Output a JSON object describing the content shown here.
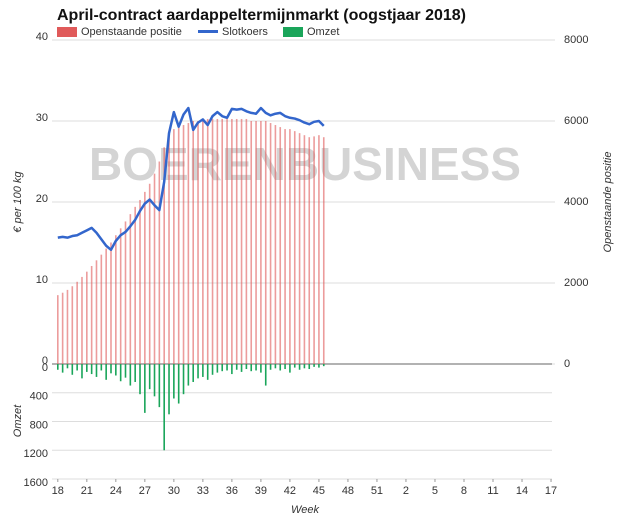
{
  "chart_data": {
    "type": "combo",
    "title": "April-contract aardappeltermijnmarkt (oogstjaar 2018)",
    "watermark": "BOERENBUSINESS",
    "x_label": "Week",
    "y_label": "€ per 100 kg",
    "y2_label": "Openstaande positie",
    "y3_label": "Omzet",
    "x": [
      18,
      18.5,
      19,
      19.5,
      20,
      20.5,
      21,
      21.5,
      22,
      22.5,
      23,
      23.5,
      24,
      24.5,
      25,
      25.5,
      26,
      26.5,
      27,
      27.5,
      28,
      28.5,
      29,
      29.5,
      30,
      30.5,
      31,
      31.5,
      32,
      32.5,
      33,
      33.5,
      34,
      34.5,
      35,
      35.5,
      36,
      36.5,
      37,
      37.5,
      38,
      38.5,
      39,
      39.5,
      40,
      40.5,
      41,
      41.5,
      42,
      42.5,
      43,
      43.5,
      44,
      44.5,
      45,
      45.5
    ],
    "xlim": [
      17.4,
      69.1
    ],
    "xticks": [
      18,
      21,
      24,
      27,
      30,
      33,
      36,
      39,
      42,
      45,
      48,
      51,
      {
        "value": 54,
        "label": "2"
      },
      {
        "value": 57,
        "label": "5"
      },
      {
        "value": 60,
        "label": "8"
      },
      {
        "value": 63,
        "label": "11"
      },
      {
        "value": 66,
        "label": "14"
      },
      {
        "value": 69,
        "label": "17"
      }
    ],
    "ylim": [
      0,
      40
    ],
    "yticks": [
      0,
      10,
      20,
      30,
      40
    ],
    "y2lim": [
      0,
      8000
    ],
    "y2ticks": [
      0,
      2000,
      4000,
      6000,
      8000
    ],
    "y3lim": [
      0,
      1600
    ],
    "y3ticks": [
      0,
      400,
      800,
      1200,
      1600
    ],
    "grid": true,
    "series": [
      {
        "name": "Openstaande positie",
        "color": "#e05a5a",
        "type": "bar",
        "axis": "y2",
        "values": [
          1700,
          1760,
          1830,
          1920,
          2030,
          2150,
          2280,
          2420,
          2560,
          2700,
          2850,
          3000,
          3180,
          3350,
          3520,
          3700,
          3880,
          4050,
          4250,
          4450,
          4700,
          5000,
          5350,
          5650,
          5800,
          5850,
          5900,
          5950,
          6000,
          6000,
          6050,
          6050,
          6050,
          6050,
          6050,
          6050,
          6050,
          6050,
          6050,
          6050,
          6000,
          6000,
          6000,
          6000,
          5950,
          5900,
          5850,
          5800,
          5800,
          5750,
          5700,
          5650,
          5600,
          5620,
          5650,
          5600
        ]
      },
      {
        "name": "Slotkoers",
        "color": "#3366cc",
        "type": "line",
        "axis": "y",
        "values": [
          15.6,
          15.7,
          15.6,
          15.8,
          15.9,
          16.2,
          16.5,
          16.8,
          16.2,
          15.4,
          14.6,
          14.1,
          15.2,
          15.9,
          16.3,
          17.0,
          17.8,
          18.9,
          19.8,
          20.3,
          19.6,
          19.0,
          22.5,
          28.5,
          31.1,
          29.3,
          30.8,
          31.6,
          28.9,
          29.8,
          30.2,
          29.5,
          30.6,
          31.1,
          30.6,
          30.4,
          31.5,
          31.4,
          31.5,
          31.2,
          31.0,
          30.9,
          31.6,
          31.0,
          30.7,
          30.9,
          31.0,
          30.6,
          30.4,
          30.3,
          30.1,
          29.8,
          29.6,
          29.9,
          30.0,
          29.4
        ]
      },
      {
        "name": "Omzet",
        "color": "#1aa55a",
        "type": "bar",
        "axis": "y3",
        "values": [
          80,
          120,
          60,
          150,
          90,
          200,
          110,
          140,
          180,
          90,
          220,
          130,
          160,
          240,
          190,
          300,
          250,
          420,
          680,
          350,
          450,
          600,
          1200,
          700,
          480,
          550,
          420,
          300,
          250,
          200,
          180,
          220,
          150,
          120,
          100,
          90,
          140,
          80,
          110,
          70,
          100,
          90,
          120,
          300,
          80,
          60,
          90,
          70,
          120,
          50,
          80,
          60,
          70,
          40,
          50,
          30
        ]
      }
    ]
  }
}
